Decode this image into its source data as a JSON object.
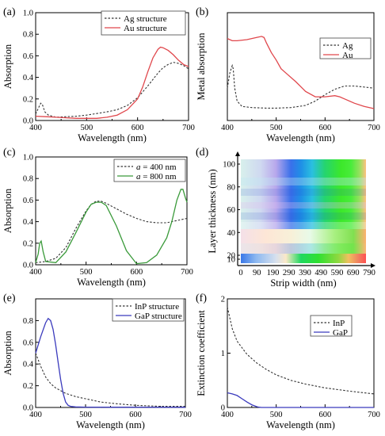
{
  "colors": {
    "red": "#e0474c",
    "green": "#3a9a3a",
    "blue": "#3b3bbd",
    "dashed": "#333333",
    "axis": "#000000"
  },
  "chart_data": [
    {
      "panel": "(a)",
      "type": "line",
      "xlabel": "Wavelength (nm)",
      "ylabel": "Absorption",
      "xlim": [
        400,
        700
      ],
      "ylim": [
        0,
        1.0
      ],
      "xticks": [
        400,
        500,
        600,
        700
      ],
      "yticks": [
        0,
        0.2,
        0.4,
        0.6,
        0.8,
        1.0
      ],
      "ytick_labels": [
        "0.0",
        "0.2",
        "0.4",
        "0.6",
        "0.8",
        "1.0"
      ],
      "legend_position": "top-right",
      "series": [
        {
          "name": "Ag structure",
          "style": "dashed",
          "color": "#333333",
          "x": [
            400,
            405,
            410,
            413,
            418,
            425,
            440,
            460,
            480,
            500,
            520,
            540,
            560,
            580,
            600,
            620,
            640,
            650,
            660,
            670,
            680,
            690,
            700
          ],
          "y": [
            0.06,
            0.11,
            0.16,
            0.15,
            0.08,
            0.05,
            0.03,
            0.035,
            0.04,
            0.05,
            0.065,
            0.08,
            0.1,
            0.14,
            0.21,
            0.32,
            0.44,
            0.49,
            0.52,
            0.54,
            0.53,
            0.51,
            0.48
          ]
        },
        {
          "name": "Au structure",
          "style": "solid",
          "color": "#e0474c",
          "x": [
            400,
            420,
            440,
            460,
            480,
            500,
            520,
            540,
            560,
            580,
            600,
            610,
            620,
            630,
            640,
            645,
            650,
            660,
            670,
            680,
            690,
            700
          ],
          "y": [
            0.04,
            0.035,
            0.03,
            0.025,
            0.02,
            0.02,
            0.02,
            0.03,
            0.05,
            0.1,
            0.2,
            0.31,
            0.45,
            0.58,
            0.66,
            0.68,
            0.675,
            0.65,
            0.61,
            0.56,
            0.52,
            0.5
          ]
        }
      ]
    },
    {
      "panel": "(b)",
      "type": "line",
      "xlabel": "Wavelength (nm)",
      "ylabel": "Metal absorption",
      "xlim": [
        400,
        700
      ],
      "ylim": [
        0,
        1.0
      ],
      "xticks": [
        400,
        500,
        600,
        700
      ],
      "legend_position": "top-right",
      "series": [
        {
          "name": "Ag",
          "style": "dashed",
          "color": "#333333",
          "x": [
            400,
            405,
            410,
            412,
            415,
            420,
            430,
            450,
            480,
            500,
            530,
            560,
            580,
            600,
            620,
            640,
            660,
            680,
            700
          ],
          "y": [
            0.3,
            0.44,
            0.51,
            0.48,
            0.3,
            0.18,
            0.13,
            0.12,
            0.115,
            0.115,
            0.12,
            0.14,
            0.18,
            0.24,
            0.29,
            0.32,
            0.32,
            0.31,
            0.3
          ]
        },
        {
          "name": "Au",
          "style": "solid",
          "color": "#e0474c",
          "x": [
            400,
            410,
            420,
            440,
            460,
            470,
            475,
            480,
            490,
            500,
            510,
            520,
            540,
            560,
            580,
            600,
            620,
            630,
            640,
            660,
            680,
            700
          ],
          "y": [
            0.76,
            0.74,
            0.74,
            0.75,
            0.77,
            0.78,
            0.77,
            0.72,
            0.63,
            0.56,
            0.48,
            0.44,
            0.36,
            0.27,
            0.22,
            0.22,
            0.23,
            0.22,
            0.2,
            0.16,
            0.13,
            0.11
          ]
        }
      ]
    },
    {
      "panel": "(c)",
      "type": "line",
      "xlabel": "Wavelength (nm)",
      "ylabel": "Absorption",
      "xlim": [
        400,
        700
      ],
      "ylim": [
        0,
        1.0
      ],
      "xticks": [
        400,
        500,
        600,
        700
      ],
      "yticks": [
        0,
        0.2,
        0.4,
        0.6,
        0.8,
        1.0
      ],
      "ytick_labels": [
        "0.0",
        "0.2",
        "0.4",
        "0.6",
        "0.8",
        "1.0"
      ],
      "legend_position": "top-right",
      "series": [
        {
          "name": "a = 400 nm",
          "name_parts": [
            "a",
            " = 400 nm"
          ],
          "style": "dashed",
          "color": "#333333",
          "x": [
            400,
            420,
            440,
            460,
            480,
            500,
            510,
            520,
            530,
            540,
            560,
            580,
            600,
            620,
            640,
            660,
            680,
            700
          ],
          "y": [
            0.02,
            0.03,
            0.06,
            0.16,
            0.34,
            0.5,
            0.56,
            0.59,
            0.59,
            0.57,
            0.52,
            0.47,
            0.43,
            0.4,
            0.39,
            0.39,
            0.41,
            0.43
          ]
        },
        {
          "name": "a = 800 nm",
          "name_parts": [
            "a",
            " = 800 nm"
          ],
          "style": "solid",
          "color": "#3a9a3a",
          "x": [
            400,
            405,
            408,
            411,
            415,
            420,
            440,
            460,
            480,
            500,
            510,
            520,
            530,
            540,
            560,
            580,
            600,
            620,
            640,
            660,
            670,
            680,
            688,
            692,
            697,
            700
          ],
          "y": [
            0.02,
            0.1,
            0.2,
            0.22,
            0.12,
            0.03,
            0.02,
            0.12,
            0.3,
            0.49,
            0.56,
            0.58,
            0.58,
            0.55,
            0.36,
            0.13,
            0.01,
            0.02,
            0.09,
            0.25,
            0.4,
            0.6,
            0.7,
            0.7,
            0.62,
            0.58
          ]
        }
      ]
    },
    {
      "panel": "(d)",
      "type": "heatmap",
      "xlabel": "Strip width (nm)",
      "ylabel": "Layer thickness (nm)",
      "xticks": [
        0,
        90,
        190,
        290,
        390,
        490,
        590,
        690,
        790
      ],
      "yticks": [
        10,
        20,
        40,
        60,
        80,
        100
      ]
    },
    {
      "panel": "(e)",
      "type": "line",
      "xlabel": "Wavelength (nm)",
      "ylabel": "Absorption",
      "xlim": [
        400,
        700
      ],
      "ylim": [
        0,
        1.0
      ],
      "xticks": [
        400,
        500,
        600,
        700
      ],
      "yticks": [
        0,
        0.2,
        0.4,
        0.6,
        0.8
      ],
      "ytick_labels": [
        "0.0",
        "0.2",
        "0.4",
        "0.6",
        "0.8"
      ],
      "legend_position": "top-right",
      "series": [
        {
          "name": "InP structure",
          "style": "dashed",
          "color": "#333333",
          "x": [
            400,
            410,
            420,
            430,
            440,
            460,
            480,
            500,
            530,
            560,
            600,
            650,
            700
          ],
          "y": [
            0.5,
            0.38,
            0.28,
            0.22,
            0.18,
            0.13,
            0.1,
            0.08,
            0.05,
            0.035,
            0.02,
            0.01,
            0.01
          ]
        },
        {
          "name": "GaP structure",
          "style": "solid",
          "color": "#3b3bbd",
          "x": [
            400,
            410,
            420,
            425,
            430,
            435,
            440,
            445,
            450,
            455,
            460,
            465,
            470,
            480,
            500,
            550,
            600,
            700
          ],
          "y": [
            0.5,
            0.65,
            0.78,
            0.82,
            0.8,
            0.72,
            0.58,
            0.42,
            0.26,
            0.13,
            0.05,
            0.02,
            0.01,
            0.005,
            0.003,
            0.002,
            0.002,
            0.002
          ]
        }
      ]
    },
    {
      "panel": "(f)",
      "type": "line",
      "xlabel": "Wavelength (nm)",
      "ylabel": "Extinction coefficient",
      "xlim": [
        400,
        700
      ],
      "ylim": [
        0,
        2
      ],
      "xticks": [
        400,
        500,
        600,
        700
      ],
      "yticks": [
        0,
        1,
        2
      ],
      "legend_position": "top-right",
      "series": [
        {
          "name": "InP",
          "style": "dashed",
          "color": "#333333",
          "x": [
            400,
            405,
            410,
            420,
            440,
            460,
            480,
            500,
            530,
            560,
            600,
            650,
            700
          ],
          "y": [
            1.85,
            1.65,
            1.45,
            1.22,
            0.98,
            0.82,
            0.7,
            0.6,
            0.5,
            0.43,
            0.36,
            0.3,
            0.25
          ]
        },
        {
          "name": "GaP",
          "style": "solid",
          "color": "#3b3bbd",
          "x": [
            400,
            410,
            420,
            430,
            440,
            450,
            460,
            465,
            470,
            480,
            500,
            600,
            700
          ],
          "y": [
            0.27,
            0.25,
            0.22,
            0.16,
            0.1,
            0.05,
            0.015,
            0.005,
            0.0,
            0.0,
            0.0,
            0.0,
            0.0
          ]
        }
      ]
    }
  ]
}
